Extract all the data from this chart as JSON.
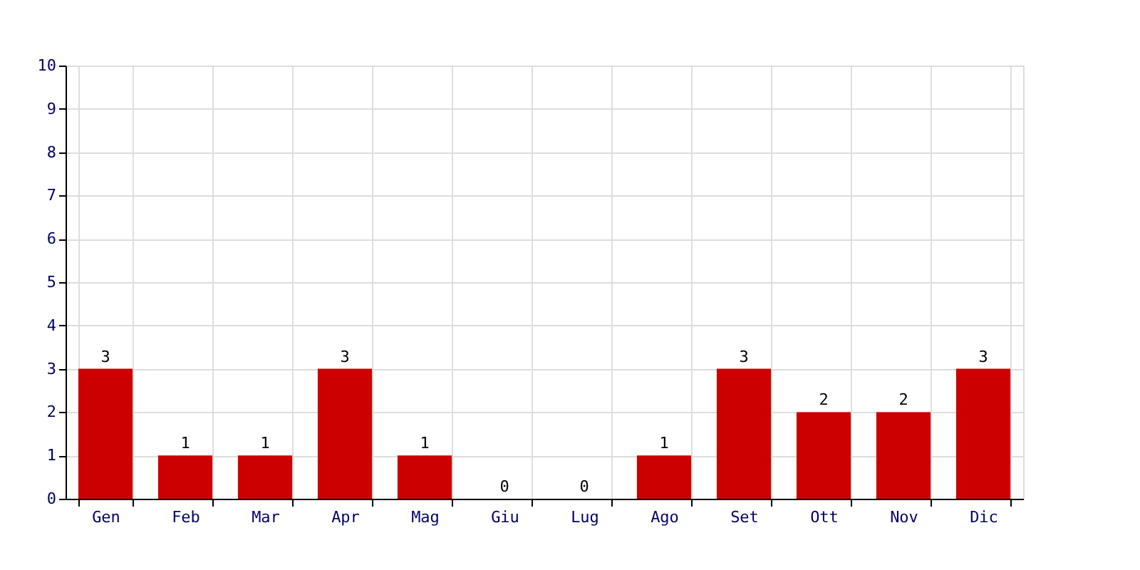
{
  "chart_data": {
    "type": "bar",
    "categories": [
      "Gen",
      "Feb",
      "Mar",
      "Apr",
      "Mag",
      "Giu",
      "Lug",
      "Ago",
      "Set",
      "Ott",
      "Nov",
      "Dic"
    ],
    "values": [
      3,
      1,
      1,
      3,
      1,
      0,
      0,
      1,
      3,
      2,
      2,
      3
    ],
    "color": "#cc0000",
    "ylim": [
      0,
      10
    ],
    "yticks": [
      0,
      1,
      2,
      3,
      4,
      5,
      6,
      7,
      8,
      9,
      10
    ],
    "grid": true,
    "data_labels": true
  }
}
